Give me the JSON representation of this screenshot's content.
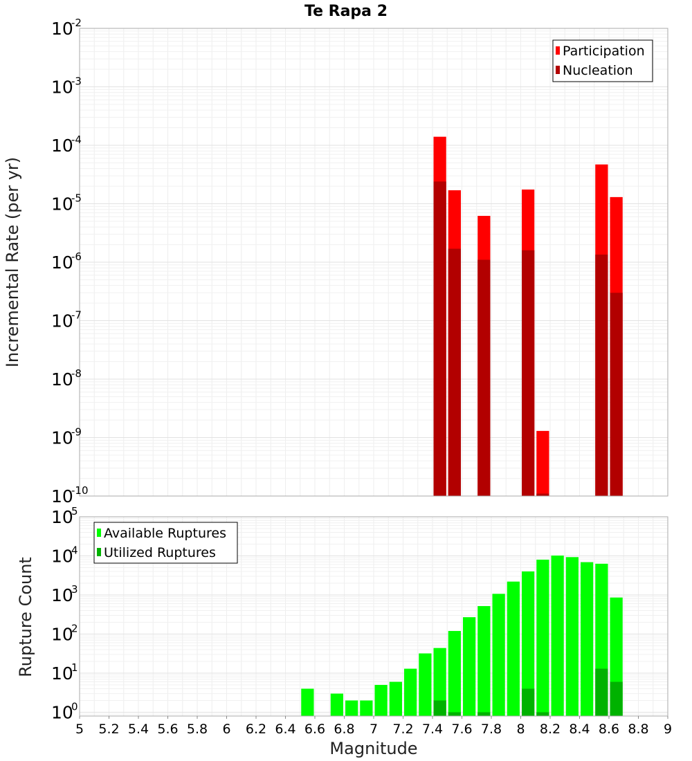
{
  "chart_data": [
    {
      "type": "bar",
      "title": "Te Rapa 2",
      "xlabel": "",
      "ylabel": "Incremental Rate (per yr)",
      "yscale": "log",
      "ylim": [
        1e-10,
        0.01
      ],
      "xlim": [
        5,
        9
      ],
      "grid": true,
      "legend_position": "top-right",
      "y_ticks": [
        {
          "base": "10",
          "exp": "-2"
        },
        {
          "base": "10",
          "exp": "-3"
        },
        {
          "base": "10",
          "exp": "-4"
        },
        {
          "base": "10",
          "exp": "-5"
        },
        {
          "base": "10",
          "exp": "-6"
        },
        {
          "base": "10",
          "exp": "-7"
        },
        {
          "base": "10",
          "exp": "-8"
        },
        {
          "base": "10",
          "exp": "-9"
        },
        {
          "base": "10",
          "exp": "-10"
        }
      ],
      "bin_width": 0.1,
      "series": [
        {
          "name": "Participation",
          "color": "#ff0000",
          "points": [
            {
              "x": 7.45,
              "y": 0.00014
            },
            {
              "x": 7.55,
              "y": 1.7e-05
            },
            {
              "x": 7.75,
              "y": 6.2e-06
            },
            {
              "x": 8.05,
              "y": 1.75e-05
            },
            {
              "x": 8.15,
              "y": 1.3e-09
            },
            {
              "x": 8.55,
              "y": 4.7e-05
            },
            {
              "x": 8.65,
              "y": 1.3e-05
            }
          ]
        },
        {
          "name": "Nucleation",
          "color": "#b20000",
          "points": [
            {
              "x": 7.45,
              "y": 2.4e-05
            },
            {
              "x": 7.55,
              "y": 1.7e-06
            },
            {
              "x": 7.75,
              "y": 1.1e-06
            },
            {
              "x": 8.05,
              "y": 1.6e-06
            },
            {
              "x": 8.15,
              "y": 1.1e-10
            },
            {
              "x": 8.55,
              "y": 1.35e-06
            },
            {
              "x": 8.65,
              "y": 3e-07
            }
          ]
        }
      ]
    },
    {
      "type": "bar",
      "title": "",
      "xlabel": "Magnitude",
      "ylabel": "Rupture Count",
      "yscale": "log",
      "ylim": [
        0.8,
        100000.0
      ],
      "xlim": [
        5,
        9
      ],
      "grid": true,
      "legend_position": "top-left",
      "x_ticks": [
        "5",
        "5.2",
        "5.4",
        "5.6",
        "5.8",
        "6",
        "6.2",
        "6.4",
        "6.6",
        "6.8",
        "7",
        "7.2",
        "7.4",
        "7.6",
        "7.8",
        "8",
        "8.2",
        "8.4",
        "8.6",
        "8.8",
        "9"
      ],
      "y_ticks": [
        {
          "base": "10",
          "exp": "5"
        },
        {
          "base": "10",
          "exp": "4"
        },
        {
          "base": "10",
          "exp": "3"
        },
        {
          "base": "10",
          "exp": "2"
        },
        {
          "base": "10",
          "exp": "1"
        },
        {
          "base": "10",
          "exp": "0"
        }
      ],
      "bin_width": 0.1,
      "series": [
        {
          "name": "Available Ruptures",
          "color": "#00ff00",
          "points": [
            {
              "x": 6.55,
              "y": 4
            },
            {
              "x": 6.75,
              "y": 3
            },
            {
              "x": 6.85,
              "y": 2
            },
            {
              "x": 6.95,
              "y": 2
            },
            {
              "x": 7.05,
              "y": 5
            },
            {
              "x": 7.15,
              "y": 6
            },
            {
              "x": 7.25,
              "y": 13
            },
            {
              "x": 7.35,
              "y": 32
            },
            {
              "x": 7.45,
              "y": 44
            },
            {
              "x": 7.55,
              "y": 120
            },
            {
              "x": 7.65,
              "y": 270
            },
            {
              "x": 7.75,
              "y": 520
            },
            {
              "x": 7.85,
              "y": 1070
            },
            {
              "x": 7.95,
              "y": 2200
            },
            {
              "x": 8.05,
              "y": 4000
            },
            {
              "x": 8.15,
              "y": 8000
            },
            {
              "x": 8.25,
              "y": 10200
            },
            {
              "x": 8.35,
              "y": 9300
            },
            {
              "x": 8.45,
              "y": 6900
            },
            {
              "x": 8.55,
              "y": 6300
            },
            {
              "x": 8.65,
              "y": 860
            }
          ]
        },
        {
          "name": "Utilized Ruptures",
          "color": "#00b200",
          "points": [
            {
              "x": 7.45,
              "y": 2
            },
            {
              "x": 7.55,
              "y": 1
            },
            {
              "x": 7.75,
              "y": 1
            },
            {
              "x": 8.05,
              "y": 4
            },
            {
              "x": 8.15,
              "y": 1
            },
            {
              "x": 8.55,
              "y": 13
            },
            {
              "x": 8.65,
              "y": 6
            }
          ]
        }
      ]
    }
  ]
}
